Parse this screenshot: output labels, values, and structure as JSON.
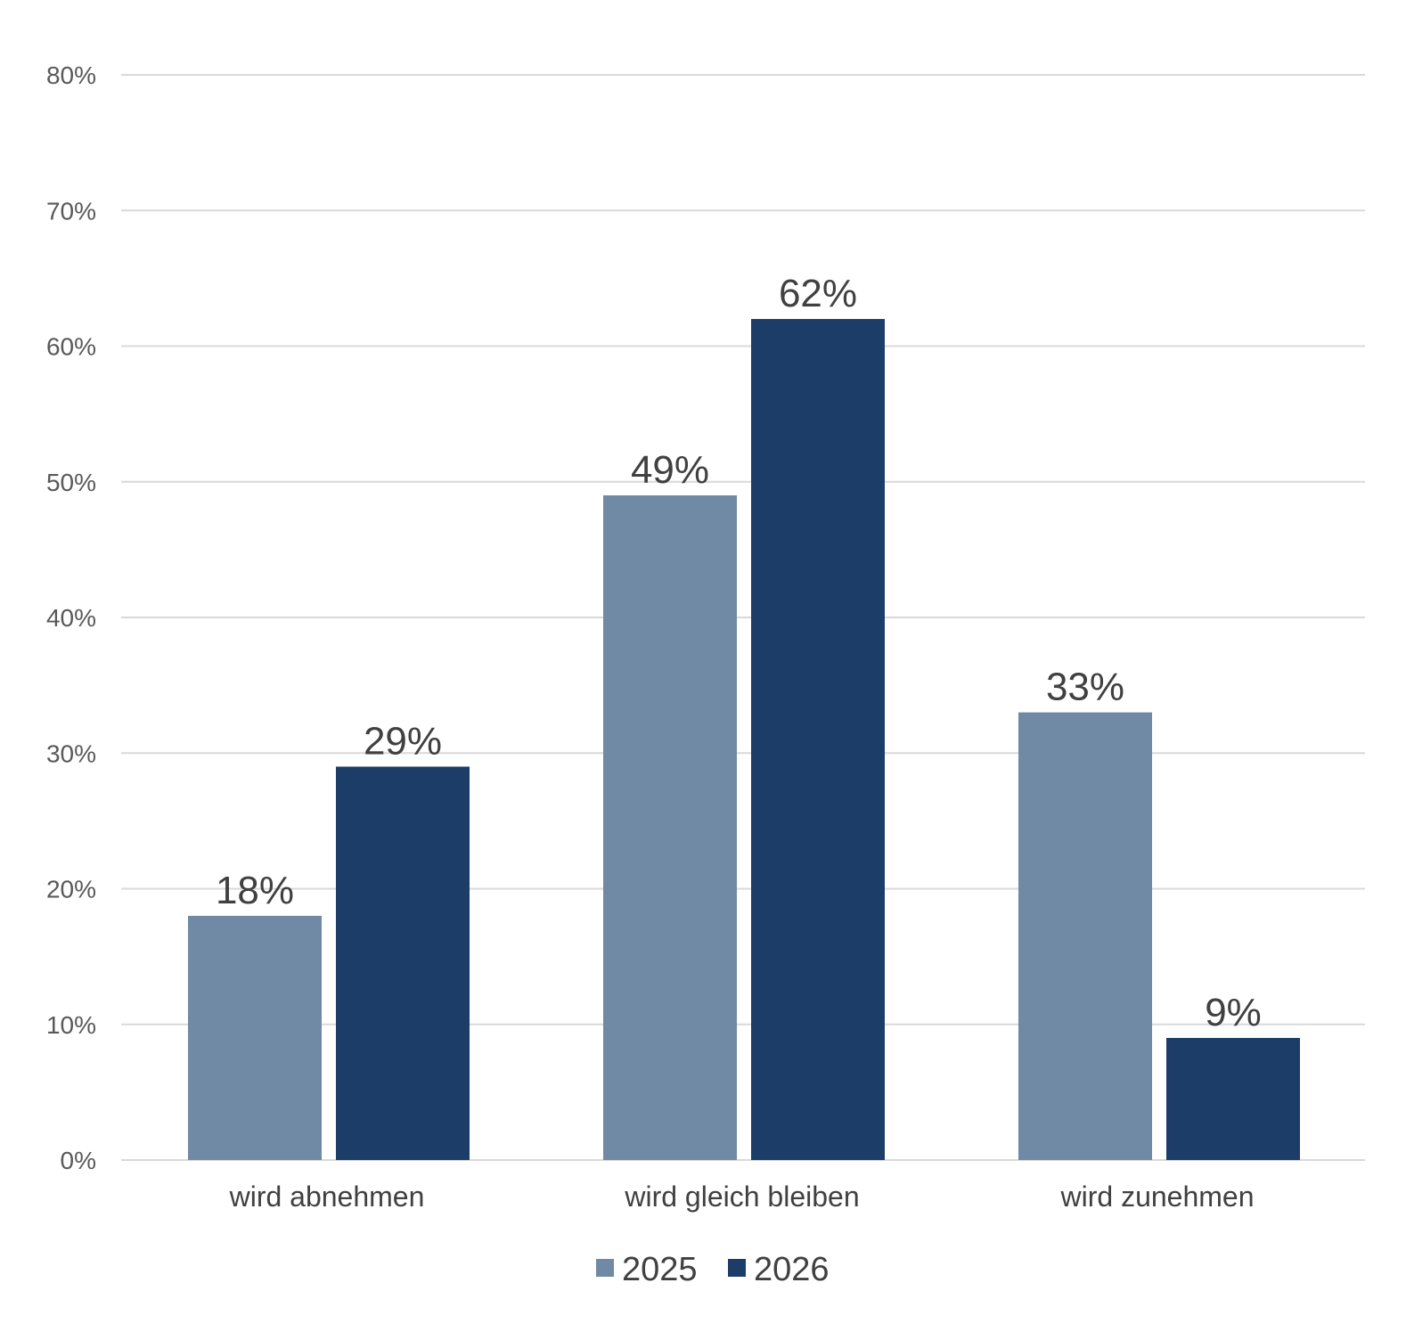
{
  "chart_data": {
    "type": "bar",
    "categories": [
      "wird abnehmen",
      "wird gleich bleiben",
      "wird zunehmen"
    ],
    "series": [
      {
        "name": "2025",
        "values": [
          18,
          49,
          33
        ],
        "labels": [
          "18%",
          "49%",
          "33%"
        ],
        "color": "#7089a5"
      },
      {
        "name": "2026",
        "values": [
          29,
          62,
          9
        ],
        "labels": [
          "29%",
          "62%",
          "9%"
        ],
        "color": "#1b3d68"
      }
    ],
    "yticks": [
      0,
      10,
      20,
      30,
      40,
      50,
      60,
      70,
      80
    ],
    "ytick_labels": [
      "0%",
      "10%",
      "20%",
      "30%",
      "40%",
      "50%",
      "60%",
      "70%",
      "80%"
    ],
    "ylim": [
      0,
      80
    ],
    "title": "",
    "xlabel": "",
    "ylabel": "",
    "grid": true,
    "legend_position": "bottom-center"
  }
}
